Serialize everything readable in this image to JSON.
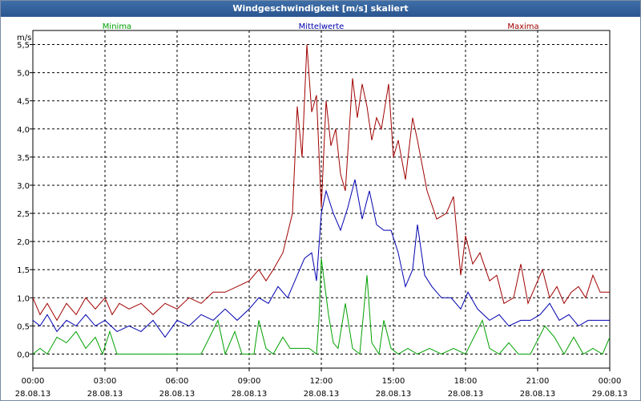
{
  "window": {
    "title": "Windgeschwindigkeit [m/s] skaliert"
  },
  "chart_data": {
    "type": "line",
    "title": "Windgeschwindigkeit [m/s] skaliert",
    "ylabel": "m/s",
    "ylim": [
      -0.25,
      5.75
    ],
    "yticks": [
      "0,0",
      "0,5",
      "1,0",
      "1,5",
      "2,0",
      "2,5",
      "3,0",
      "3,5",
      "4,0",
      "4,5",
      "5,0",
      "5,5"
    ],
    "xlim_hours": [
      0,
      24
    ],
    "xticks": [
      {
        "time": "00:00",
        "date": "28.08.13"
      },
      {
        "time": "03:00",
        "date": "28.08.13"
      },
      {
        "time": "06:00",
        "date": "28.08.13"
      },
      {
        "time": "09:00",
        "date": "28.08.13"
      },
      {
        "time": "12:00",
        "date": "28.08.13"
      },
      {
        "time": "15:00",
        "date": "28.08.13"
      },
      {
        "time": "18:00",
        "date": "28.08.13"
      },
      {
        "time": "21:00",
        "date": "28.08.13"
      },
      {
        "time": "00:00",
        "date": "29.08.13"
      }
    ],
    "grid": true,
    "legend_position": "top",
    "series": [
      {
        "name": "Minima",
        "color": "#00a000",
        "points": [
          [
            0,
            0.0
          ],
          [
            0.3,
            0.1
          ],
          [
            0.6,
            0.0
          ],
          [
            1.0,
            0.3
          ],
          [
            1.4,
            0.2
          ],
          [
            1.8,
            0.4
          ],
          [
            2.2,
            0.1
          ],
          [
            2.6,
            0.3
          ],
          [
            2.9,
            0.0
          ],
          [
            3.2,
            0.4
          ],
          [
            3.5,
            0.0
          ],
          [
            4.0,
            0.0
          ],
          [
            5.0,
            0.0
          ],
          [
            6.0,
            0.0
          ],
          [
            7.0,
            0.0
          ],
          [
            7.7,
            0.6
          ],
          [
            8.0,
            0.0
          ],
          [
            8.4,
            0.4
          ],
          [
            8.7,
            0.0
          ],
          [
            9.2,
            0.0
          ],
          [
            9.4,
            0.6
          ],
          [
            9.7,
            0.1
          ],
          [
            10.0,
            0.0
          ],
          [
            10.4,
            0.3
          ],
          [
            10.7,
            0.1
          ],
          [
            11.5,
            0.1
          ],
          [
            11.8,
            0.0
          ],
          [
            11.9,
            0.6
          ],
          [
            12.0,
            1.7
          ],
          [
            12.3,
            0.7
          ],
          [
            12.5,
            0.2
          ],
          [
            12.7,
            0.1
          ],
          [
            13.0,
            0.9
          ],
          [
            13.3,
            0.1
          ],
          [
            13.6,
            0.0
          ],
          [
            13.9,
            1.4
          ],
          [
            14.1,
            0.2
          ],
          [
            14.4,
            0.0
          ],
          [
            14.6,
            0.6
          ],
          [
            14.9,
            0.1
          ],
          [
            15.2,
            0.0
          ],
          [
            15.6,
            0.1
          ],
          [
            16.0,
            0.0
          ],
          [
            16.5,
            0.1
          ],
          [
            17.0,
            0.0
          ],
          [
            17.5,
            0.1
          ],
          [
            18.0,
            0.0
          ],
          [
            18.7,
            0.6
          ],
          [
            19.0,
            0.1
          ],
          [
            19.4,
            0.0
          ],
          [
            19.8,
            0.2
          ],
          [
            20.2,
            0.0
          ],
          [
            20.7,
            0.0
          ],
          [
            21.3,
            0.5
          ],
          [
            21.7,
            0.3
          ],
          [
            22.1,
            0.0
          ],
          [
            22.5,
            0.3
          ],
          [
            22.9,
            0.0
          ],
          [
            23.3,
            0.1
          ],
          [
            23.7,
            0.0
          ],
          [
            24.0,
            0.3
          ]
        ]
      },
      {
        "name": "Mittelwerte",
        "color": "#0000b0",
        "points": [
          [
            0,
            0.6
          ],
          [
            0.3,
            0.5
          ],
          [
            0.6,
            0.7
          ],
          [
            1.0,
            0.4
          ],
          [
            1.4,
            0.6
          ],
          [
            1.8,
            0.5
          ],
          [
            2.2,
            0.7
          ],
          [
            2.6,
            0.5
          ],
          [
            3.0,
            0.6
          ],
          [
            3.5,
            0.4
          ],
          [
            4.0,
            0.5
          ],
          [
            4.5,
            0.4
          ],
          [
            5.0,
            0.6
          ],
          [
            5.5,
            0.3
          ],
          [
            6.0,
            0.6
          ],
          [
            6.5,
            0.5
          ],
          [
            7.0,
            0.7
          ],
          [
            7.5,
            0.6
          ],
          [
            8.0,
            0.8
          ],
          [
            8.5,
            0.6
          ],
          [
            9.0,
            0.8
          ],
          [
            9.4,
            1.0
          ],
          [
            9.8,
            0.9
          ],
          [
            10.2,
            1.2
          ],
          [
            10.6,
            1.0
          ],
          [
            11.0,
            1.4
          ],
          [
            11.3,
            1.7
          ],
          [
            11.6,
            1.8
          ],
          [
            11.8,
            1.3
          ],
          [
            12.0,
            2.5
          ],
          [
            12.2,
            2.9
          ],
          [
            12.5,
            2.5
          ],
          [
            12.8,
            2.2
          ],
          [
            13.1,
            2.6
          ],
          [
            13.4,
            3.1
          ],
          [
            13.7,
            2.4
          ],
          [
            14.0,
            2.9
          ],
          [
            14.3,
            2.3
          ],
          [
            14.6,
            2.2
          ],
          [
            14.9,
            2.2
          ],
          [
            15.2,
            1.8
          ],
          [
            15.5,
            1.2
          ],
          [
            15.8,
            1.5
          ],
          [
            16.0,
            2.3
          ],
          [
            16.3,
            1.4
          ],
          [
            16.6,
            1.2
          ],
          [
            17.0,
            1.0
          ],
          [
            17.4,
            1.0
          ],
          [
            17.8,
            0.8
          ],
          [
            18.1,
            1.1
          ],
          [
            18.5,
            0.8
          ],
          [
            19.0,
            0.6
          ],
          [
            19.4,
            0.7
          ],
          [
            19.8,
            0.5
          ],
          [
            20.3,
            0.6
          ],
          [
            20.7,
            0.6
          ],
          [
            21.1,
            0.7
          ],
          [
            21.5,
            0.9
          ],
          [
            21.9,
            0.6
          ],
          [
            22.3,
            0.7
          ],
          [
            22.7,
            0.5
          ],
          [
            23.1,
            0.6
          ],
          [
            23.5,
            0.6
          ],
          [
            24.0,
            0.6
          ]
        ]
      },
      {
        "name": "Maxima",
        "color": "#a00000",
        "points": [
          [
            0,
            1.0
          ],
          [
            0.3,
            0.7
          ],
          [
            0.6,
            0.9
          ],
          [
            1.0,
            0.6
          ],
          [
            1.4,
            0.9
          ],
          [
            1.8,
            0.7
          ],
          [
            2.2,
            1.0
          ],
          [
            2.6,
            0.8
          ],
          [
            3.0,
            1.0
          ],
          [
            3.3,
            0.7
          ],
          [
            3.6,
            0.9
          ],
          [
            4.0,
            0.8
          ],
          [
            4.5,
            0.9
          ],
          [
            5.0,
            0.7
          ],
          [
            5.5,
            0.9
          ],
          [
            6.0,
            0.8
          ],
          [
            6.5,
            1.0
          ],
          [
            7.0,
            0.9
          ],
          [
            7.5,
            1.1
          ],
          [
            8.0,
            1.1
          ],
          [
            8.5,
            1.2
          ],
          [
            9.0,
            1.3
          ],
          [
            9.4,
            1.5
          ],
          [
            9.7,
            1.3
          ],
          [
            10.0,
            1.5
          ],
          [
            10.4,
            1.8
          ],
          [
            10.8,
            2.5
          ],
          [
            11.0,
            4.4
          ],
          [
            11.2,
            3.5
          ],
          [
            11.4,
            5.5
          ],
          [
            11.6,
            4.3
          ],
          [
            11.8,
            4.6
          ],
          [
            12.0,
            2.6
          ],
          [
            12.2,
            4.5
          ],
          [
            12.4,
            3.7
          ],
          [
            12.6,
            4.0
          ],
          [
            12.8,
            3.2
          ],
          [
            13.0,
            2.9
          ],
          [
            13.3,
            4.9
          ],
          [
            13.5,
            4.2
          ],
          [
            13.7,
            4.8
          ],
          [
            13.9,
            4.4
          ],
          [
            14.1,
            3.8
          ],
          [
            14.3,
            4.2
          ],
          [
            14.5,
            4.0
          ],
          [
            14.8,
            4.8
          ],
          [
            15.0,
            3.5
          ],
          [
            15.2,
            3.8
          ],
          [
            15.5,
            3.1
          ],
          [
            15.8,
            4.2
          ],
          [
            16.0,
            3.8
          ],
          [
            16.4,
            2.9
          ],
          [
            16.8,
            2.4
          ],
          [
            17.2,
            2.5
          ],
          [
            17.5,
            2.8
          ],
          [
            17.8,
            1.4
          ],
          [
            18.0,
            2.1
          ],
          [
            18.3,
            1.6
          ],
          [
            18.6,
            1.8
          ],
          [
            19.0,
            1.3
          ],
          [
            19.3,
            1.4
          ],
          [
            19.6,
            0.9
          ],
          [
            20.0,
            1.0
          ],
          [
            20.3,
            1.6
          ],
          [
            20.6,
            0.9
          ],
          [
            20.9,
            1.2
          ],
          [
            21.2,
            1.5
          ],
          [
            21.5,
            1.0
          ],
          [
            21.8,
            1.2
          ],
          [
            22.1,
            0.9
          ],
          [
            22.4,
            1.1
          ],
          [
            22.7,
            1.2
          ],
          [
            23.0,
            1.0
          ],
          [
            23.3,
            1.4
          ],
          [
            23.6,
            1.1
          ],
          [
            24.0,
            1.1
          ]
        ]
      }
    ]
  }
}
